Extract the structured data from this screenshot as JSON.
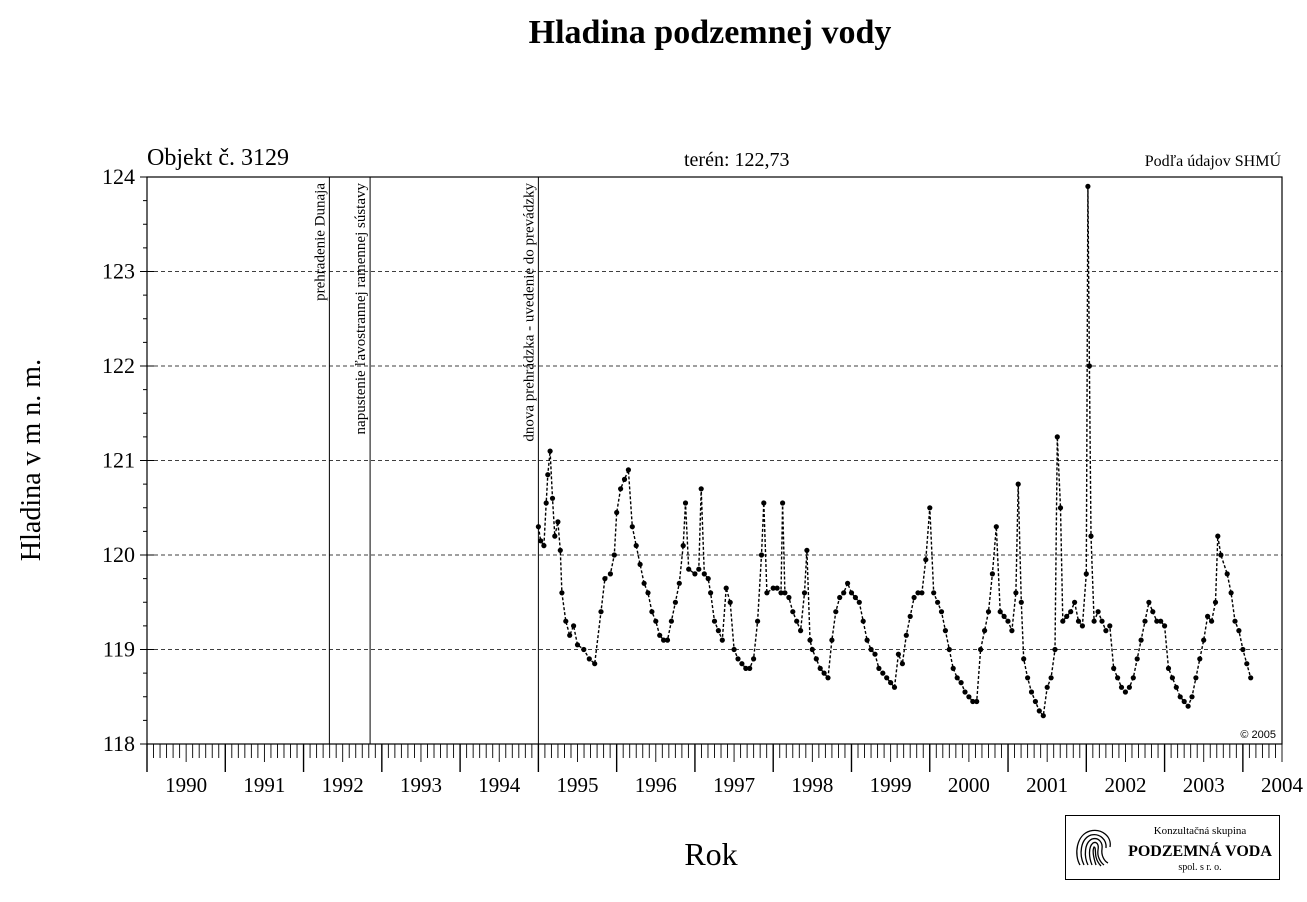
{
  "chart_data": {
    "type": "scatter",
    "title": "Hladina podzemnej vody",
    "object_label": "Objekt č. 3129",
    "terrain_label": "terén: 122,73",
    "source_label": "Podľa údajov SHMÚ",
    "copyright": "© 2005",
    "xlabel": "Rok",
    "ylabel": "Hladina v m n. m.",
    "xlim": [
      1990,
      2004.5
    ],
    "ylim": [
      118,
      124
    ],
    "year_ticks": [
      "1990",
      "1991",
      "1992",
      "1993",
      "1994",
      "1995",
      "1996",
      "1997",
      "1998",
      "1999",
      "2000",
      "2001",
      "2002",
      "2003",
      "2004"
    ],
    "y_ticks": [
      118,
      119,
      120,
      121,
      122,
      123,
      124
    ],
    "grid": "horizontal-dashed",
    "events": [
      {
        "x": 1992.33,
        "label": "prehradenie Dunaja"
      },
      {
        "x": 1992.85,
        "label": "napustenie ľavostrannej ramennej sústavy"
      },
      {
        "x": 1995.0,
        "label": "dnova prehrádzka - uvedenie do prevádzky"
      }
    ],
    "points": [
      [
        1995.0,
        120.3
      ],
      [
        1995.03,
        120.15
      ],
      [
        1995.07,
        120.1
      ],
      [
        1995.1,
        120.55
      ],
      [
        1995.12,
        120.85
      ],
      [
        1995.15,
        121.1
      ],
      [
        1995.18,
        120.6
      ],
      [
        1995.21,
        120.2
      ],
      [
        1995.25,
        120.35
      ],
      [
        1995.28,
        120.05
      ],
      [
        1995.3,
        119.6
      ],
      [
        1995.35,
        119.3
      ],
      [
        1995.4,
        119.15
      ],
      [
        1995.45,
        119.25
      ],
      [
        1995.5,
        119.05
      ],
      [
        1995.58,
        119.0
      ],
      [
        1995.65,
        118.9
      ],
      [
        1995.72,
        118.85
      ],
      [
        1995.8,
        119.4
      ],
      [
        1995.85,
        119.75
      ],
      [
        1995.92,
        119.8
      ],
      [
        1995.97,
        120.0
      ],
      [
        1996.0,
        120.45
      ],
      [
        1996.05,
        120.7
      ],
      [
        1996.1,
        120.8
      ],
      [
        1996.15,
        120.9
      ],
      [
        1996.2,
        120.3
      ],
      [
        1996.25,
        120.1
      ],
      [
        1996.3,
        119.9
      ],
      [
        1996.35,
        119.7
      ],
      [
        1996.4,
        119.6
      ],
      [
        1996.45,
        119.4
      ],
      [
        1996.5,
        119.3
      ],
      [
        1996.55,
        119.15
      ],
      [
        1996.6,
        119.1
      ],
      [
        1996.65,
        119.1
      ],
      [
        1996.7,
        119.3
      ],
      [
        1996.75,
        119.5
      ],
      [
        1996.8,
        119.7
      ],
      [
        1996.85,
        120.1
      ],
      [
        1996.88,
        120.55
      ],
      [
        1996.92,
        119.85
      ],
      [
        1997.0,
        119.8
      ],
      [
        1997.05,
        119.85
      ],
      [
        1997.08,
        120.7
      ],
      [
        1997.12,
        119.8
      ],
      [
        1997.17,
        119.75
      ],
      [
        1997.2,
        119.6
      ],
      [
        1997.25,
        119.3
      ],
      [
        1997.3,
        119.2
      ],
      [
        1997.35,
        119.1
      ],
      [
        1997.4,
        119.65
      ],
      [
        1997.45,
        119.5
      ],
      [
        1997.5,
        119.0
      ],
      [
        1997.55,
        118.9
      ],
      [
        1997.6,
        118.85
      ],
      [
        1997.65,
        118.8
      ],
      [
        1997.7,
        118.8
      ],
      [
        1997.75,
        118.9
      ],
      [
        1997.8,
        119.3
      ],
      [
        1997.85,
        120.0
      ],
      [
        1997.88,
        120.55
      ],
      [
        1997.92,
        119.6
      ],
      [
        1998.0,
        119.65
      ],
      [
        1998.05,
        119.65
      ],
      [
        1998.1,
        119.6
      ],
      [
        1998.12,
        120.55
      ],
      [
        1998.15,
        119.6
      ],
      [
        1998.2,
        119.55
      ],
      [
        1998.25,
        119.4
      ],
      [
        1998.3,
        119.3
      ],
      [
        1998.35,
        119.2
      ],
      [
        1998.4,
        119.6
      ],
      [
        1998.43,
        120.05
      ],
      [
        1998.47,
        119.1
      ],
      [
        1998.5,
        119.0
      ],
      [
        1998.55,
        118.9
      ],
      [
        1998.6,
        118.8
      ],
      [
        1998.65,
        118.75
      ],
      [
        1998.7,
        118.7
      ],
      [
        1998.75,
        119.1
      ],
      [
        1998.8,
        119.4
      ],
      [
        1998.85,
        119.55
      ],
      [
        1998.9,
        119.6
      ],
      [
        1998.95,
        119.7
      ],
      [
        1999.0,
        119.6
      ],
      [
        1999.05,
        119.55
      ],
      [
        1999.1,
        119.5
      ],
      [
        1999.15,
        119.3
      ],
      [
        1999.2,
        119.1
      ],
      [
        1999.25,
        119.0
      ],
      [
        1999.3,
        118.95
      ],
      [
        1999.35,
        118.8
      ],
      [
        1999.4,
        118.75
      ],
      [
        1999.45,
        118.7
      ],
      [
        1999.5,
        118.65
      ],
      [
        1999.55,
        118.6
      ],
      [
        1999.6,
        118.95
      ],
      [
        1999.65,
        118.85
      ],
      [
        1999.7,
        119.15
      ],
      [
        1999.75,
        119.35
      ],
      [
        1999.8,
        119.55
      ],
      [
        1999.85,
        119.6
      ],
      [
        1999.9,
        119.6
      ],
      [
        1999.95,
        119.95
      ],
      [
        2000.0,
        120.5
      ],
      [
        2000.05,
        119.6
      ],
      [
        2000.1,
        119.5
      ],
      [
        2000.15,
        119.4
      ],
      [
        2000.2,
        119.2
      ],
      [
        2000.25,
        119.0
      ],
      [
        2000.3,
        118.8
      ],
      [
        2000.35,
        118.7
      ],
      [
        2000.4,
        118.65
      ],
      [
        2000.45,
        118.55
      ],
      [
        2000.5,
        118.5
      ],
      [
        2000.55,
        118.45
      ],
      [
        2000.6,
        118.45
      ],
      [
        2000.65,
        119.0
      ],
      [
        2000.7,
        119.2
      ],
      [
        2000.75,
        119.4
      ],
      [
        2000.8,
        119.8
      ],
      [
        2000.85,
        120.3
      ],
      [
        2000.9,
        119.4
      ],
      [
        2000.95,
        119.35
      ],
      [
        2001.0,
        119.3
      ],
      [
        2001.05,
        119.2
      ],
      [
        2001.1,
        119.6
      ],
      [
        2001.13,
        120.75
      ],
      [
        2001.17,
        119.5
      ],
      [
        2001.2,
        118.9
      ],
      [
        2001.25,
        118.7
      ],
      [
        2001.3,
        118.55
      ],
      [
        2001.35,
        118.45
      ],
      [
        2001.4,
        118.35
      ],
      [
        2001.45,
        118.3
      ],
      [
        2001.5,
        118.6
      ],
      [
        2001.55,
        118.7
      ],
      [
        2001.6,
        119.0
      ],
      [
        2001.63,
        121.25
      ],
      [
        2001.67,
        120.5
      ],
      [
        2001.7,
        119.3
      ],
      [
        2001.75,
        119.35
      ],
      [
        2001.8,
        119.4
      ],
      [
        2001.85,
        119.5
      ],
      [
        2001.9,
        119.3
      ],
      [
        2001.95,
        119.25
      ],
      [
        2002.0,
        119.8
      ],
      [
        2002.02,
        123.9
      ],
      [
        2002.04,
        122.0
      ],
      [
        2002.06,
        120.2
      ],
      [
        2002.1,
        119.3
      ],
      [
        2002.15,
        119.4
      ],
      [
        2002.2,
        119.3
      ],
      [
        2002.25,
        119.2
      ],
      [
        2002.3,
        119.25
      ],
      [
        2002.35,
        118.8
      ],
      [
        2002.4,
        118.7
      ],
      [
        2002.45,
        118.6
      ],
      [
        2002.5,
        118.55
      ],
      [
        2002.55,
        118.6
      ],
      [
        2002.6,
        118.7
      ],
      [
        2002.65,
        118.9
      ],
      [
        2002.7,
        119.1
      ],
      [
        2002.75,
        119.3
      ],
      [
        2002.8,
        119.5
      ],
      [
        2002.85,
        119.4
      ],
      [
        2002.9,
        119.3
      ],
      [
        2002.95,
        119.3
      ],
      [
        2003.0,
        119.25
      ],
      [
        2003.05,
        118.8
      ],
      [
        2003.1,
        118.7
      ],
      [
        2003.15,
        118.6
      ],
      [
        2003.2,
        118.5
      ],
      [
        2003.25,
        118.45
      ],
      [
        2003.3,
        118.4
      ],
      [
        2003.35,
        118.5
      ],
      [
        2003.4,
        118.7
      ],
      [
        2003.45,
        118.9
      ],
      [
        2003.5,
        119.1
      ],
      [
        2003.55,
        119.35
      ],
      [
        2003.6,
        119.3
      ],
      [
        2003.65,
        119.5
      ],
      [
        2003.68,
        120.2
      ],
      [
        2003.72,
        120.0
      ],
      [
        2003.8,
        119.8
      ],
      [
        2003.85,
        119.6
      ],
      [
        2003.9,
        119.3
      ],
      [
        2003.95,
        119.2
      ],
      [
        2004.0,
        119.0
      ],
      [
        2004.05,
        118.85
      ],
      [
        2004.1,
        118.7
      ]
    ]
  },
  "logo": {
    "line1": "Konzultačná skupina",
    "line2": "PODZEMNÁ VODA",
    "line3": "spol. s r. o."
  }
}
